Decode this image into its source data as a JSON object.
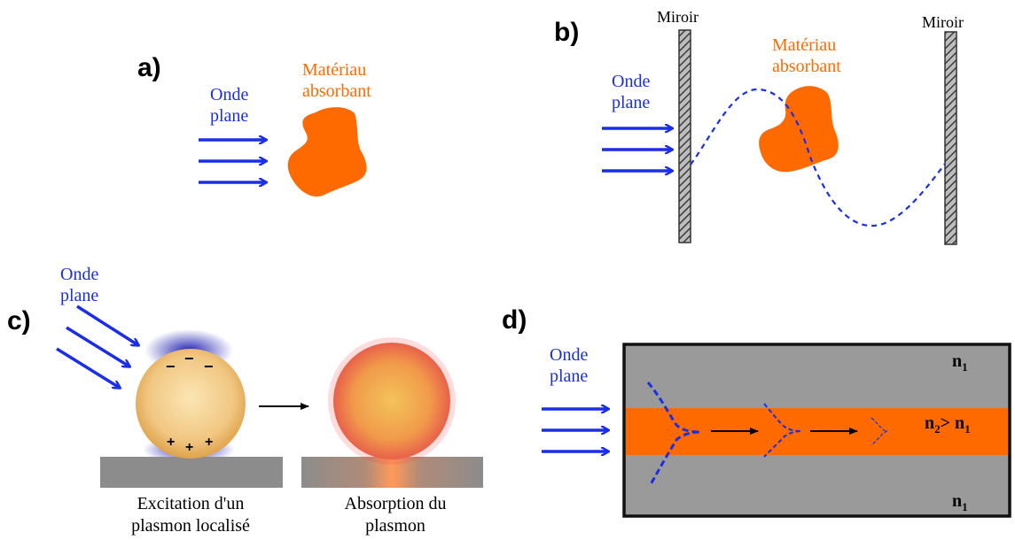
{
  "colors": {
    "wave_blue": "#1a2ee8",
    "absorber_orange": "#ff6a00",
    "mirror_gray": "#555555",
    "substrate_gray": "#8c8c8c",
    "guide_gray": "#9a9a9a"
  },
  "panel_a": {
    "label": "a)",
    "wave_label_line1": "Onde",
    "wave_label_line2": "plane",
    "material_label_line1": "Matériau",
    "material_label_line2": "absorbant"
  },
  "panel_b": {
    "label": "b)",
    "mirror_left_label": "Miroir",
    "mirror_right_label": "Miroir",
    "wave_label_line1": "Onde",
    "wave_label_line2": "plane",
    "material_label_line1": "Matériau",
    "material_label_line2": "absorbant"
  },
  "panel_c": {
    "label": "c)",
    "wave_label_line1": "Onde",
    "wave_label_line2": "plane",
    "minus_sign": "−",
    "plus_sign": "+",
    "caption_left_line1": "Excitation d'un",
    "caption_left_line2": "plasmon localisé",
    "caption_right_line1": "Absorption du",
    "caption_right_line2": "plasmon"
  },
  "panel_d": {
    "label": "d)",
    "wave_label_line1": "Onde",
    "wave_label_line2": "plane",
    "n1": "n",
    "n1_sub": "1",
    "n2": "n",
    "n2_sub": "2",
    "gt": "> n",
    "gt_sub": "1"
  }
}
